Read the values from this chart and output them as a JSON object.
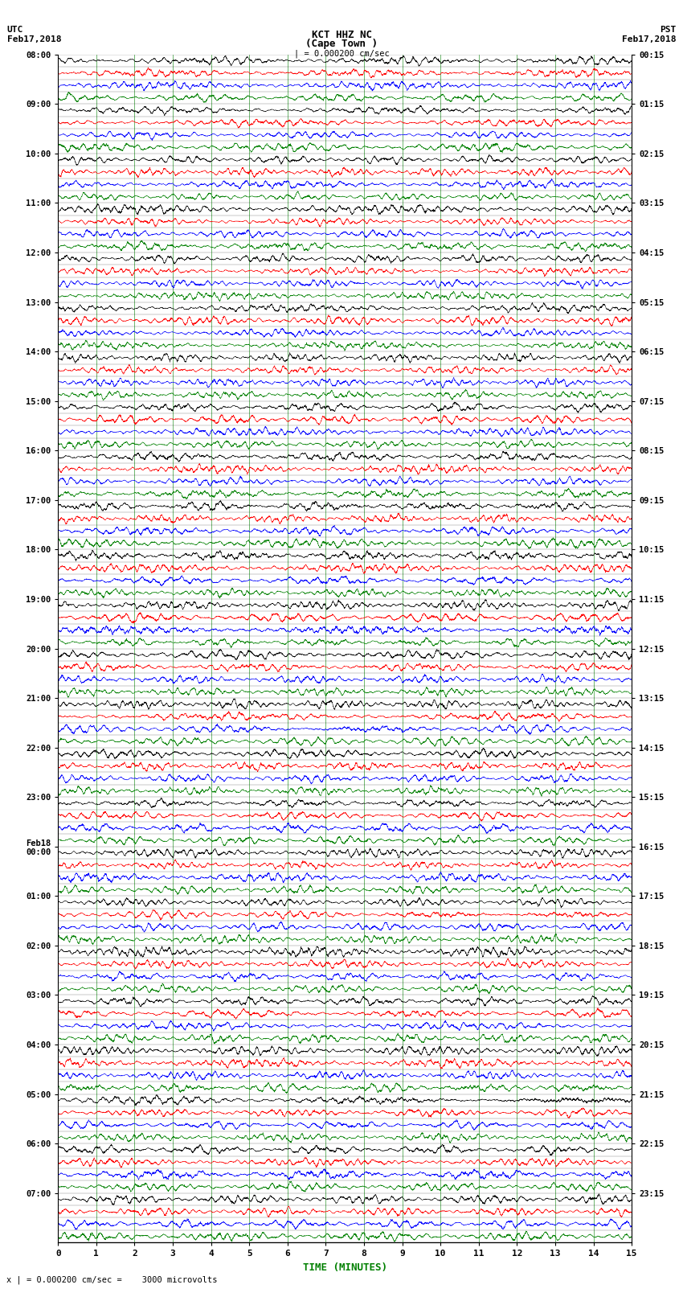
{
  "title_line1": "KCT HHZ NC",
  "title_line2": "(Cape Town )",
  "title_scale": "| = 0.000200 cm/sec",
  "left_header1": "UTC",
  "left_header2": "Feb17,2018",
  "right_header1": "PST",
  "right_header2": "Feb17,2018",
  "xlabel": "TIME (MINUTES)",
  "footer": "x | = 0.000200 cm/sec =    3000 microvolts",
  "utc_labels": [
    "08:00",
    "09:00",
    "10:00",
    "11:00",
    "12:00",
    "13:00",
    "14:00",
    "15:00",
    "16:00",
    "17:00",
    "18:00",
    "19:00",
    "20:00",
    "21:00",
    "22:00",
    "23:00",
    "Feb18\n00:00",
    "01:00",
    "02:00",
    "03:00",
    "04:00",
    "05:00",
    "06:00",
    "07:00"
  ],
  "pst_labels": [
    "00:15",
    "01:15",
    "02:15",
    "03:15",
    "04:15",
    "05:15",
    "06:15",
    "07:15",
    "08:15",
    "09:15",
    "10:15",
    "11:15",
    "12:15",
    "13:15",
    "14:15",
    "15:15",
    "16:15",
    "17:15",
    "18:15",
    "19:15",
    "20:15",
    "21:15",
    "22:15",
    "23:15"
  ],
  "xticks": [
    0,
    1,
    2,
    3,
    4,
    5,
    6,
    7,
    8,
    9,
    10,
    11,
    12,
    13,
    14,
    15
  ],
  "num_rows": 96,
  "colors": [
    "black",
    "red",
    "blue",
    "green"
  ],
  "bg_color": "white",
  "trace_color_cycle": [
    "black",
    "red",
    "blue",
    "green"
  ],
  "amplitude": 0.45,
  "num_points": 6000
}
